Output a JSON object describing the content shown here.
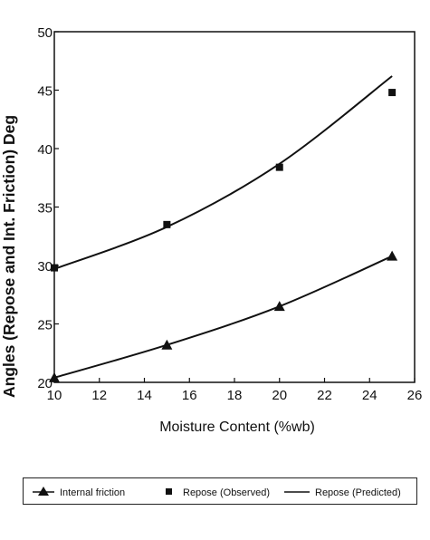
{
  "chart_data": {
    "type": "line",
    "xlabel": "Moisture Content (%wb)",
    "ylabel": "Angles (Repose and Int. Friction) Deg",
    "xlim": [
      10,
      26
    ],
    "ylim": [
      20,
      50
    ],
    "xticks": [
      10,
      12,
      14,
      16,
      18,
      20,
      22,
      24,
      26
    ],
    "yticks": [
      20,
      25,
      30,
      35,
      40,
      45,
      50
    ],
    "grid": false,
    "legend_position": "bottom",
    "series": [
      {
        "name": "Internal friction",
        "style": "line-triangle",
        "x": [
          10,
          15,
          20,
          25
        ],
        "y": [
          20.4,
          23.2,
          26.5,
          30.8
        ]
      },
      {
        "name": "Repose (Observed)",
        "style": "square-marker",
        "x": [
          10,
          15,
          20,
          25
        ],
        "y": [
          29.8,
          33.5,
          38.4,
          44.8
        ]
      },
      {
        "name": "Repose (Predicted)",
        "style": "line",
        "x": [
          10,
          15,
          20,
          25
        ],
        "y": [
          29.7,
          33.3,
          38.7,
          46.2
        ]
      }
    ]
  }
}
